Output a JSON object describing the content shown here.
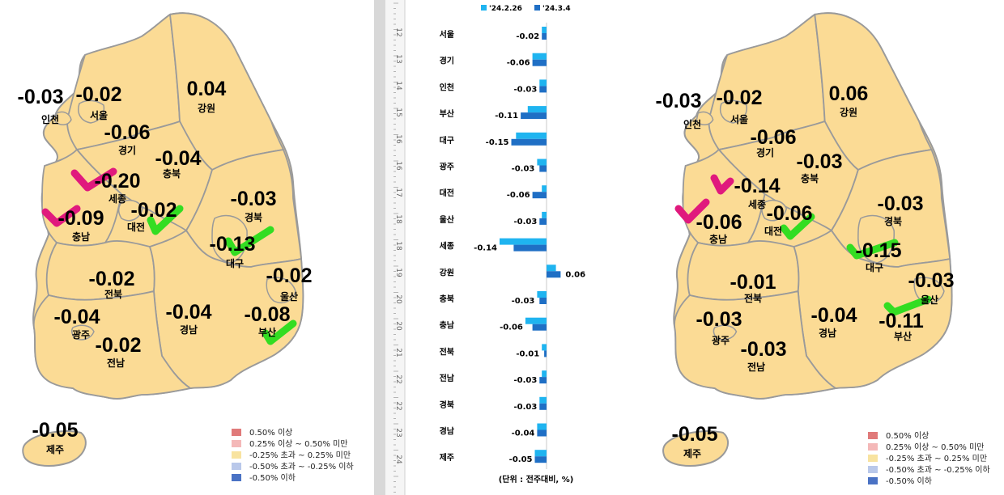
{
  "left_map": {
    "labels": [
      {
        "region": "인천",
        "value": "-0.03"
      },
      {
        "region": "서울",
        "value": "-0.02"
      },
      {
        "region": "강원",
        "value": "0.04"
      },
      {
        "region": "경기",
        "value": "-0.06"
      },
      {
        "region": "충북",
        "value": "-0.04"
      },
      {
        "region": "세종",
        "value": "-0.20"
      },
      {
        "region": "대전",
        "value": "-0.02"
      },
      {
        "region": "경북",
        "value": "-0.03"
      },
      {
        "region": "충남",
        "value": "-0.09"
      },
      {
        "region": "대구",
        "value": "-0.13"
      },
      {
        "region": "울산",
        "value": "-0.02"
      },
      {
        "region": "전북",
        "value": "-0.02"
      },
      {
        "region": "광주",
        "value": "-0.04"
      },
      {
        "region": "경남",
        "value": "-0.04"
      },
      {
        "region": "부산",
        "value": "-0.08"
      },
      {
        "region": "전남",
        "value": "-0.02"
      },
      {
        "region": "제주",
        "value": "-0.05"
      }
    ]
  },
  "right_map": {
    "labels": [
      {
        "region": "인천",
        "value": "-0.03"
      },
      {
        "region": "서울",
        "value": "-0.02"
      },
      {
        "region": "강원",
        "value": "0.06"
      },
      {
        "region": "경기",
        "value": "-0.06"
      },
      {
        "region": "충북",
        "value": "-0.03"
      },
      {
        "region": "세종",
        "value": "-0.14"
      },
      {
        "region": "대전",
        "value": "-0.06"
      },
      {
        "region": "경북",
        "value": "-0.03"
      },
      {
        "region": "충남",
        "value": "-0.06"
      },
      {
        "region": "대구",
        "value": "-0.15"
      },
      {
        "region": "울산",
        "value": "-0.03"
      },
      {
        "region": "전북",
        "value": "-0.01"
      },
      {
        "region": "광주",
        "value": "-0.03"
      },
      {
        "region": "경남",
        "value": "-0.04"
      },
      {
        "region": "부산",
        "value": "-0.11"
      },
      {
        "region": "전남",
        "value": "-0.03"
      },
      {
        "region": "제주",
        "value": "-0.05"
      }
    ]
  },
  "legend": [
    {
      "label": "0.50% 이상",
      "color": "#e07a7a"
    },
    {
      "label": "0.25% 이상 ~ 0.50% 미만",
      "color": "#f4b8b8"
    },
    {
      "label": "-0.25% 초과 ~ 0.25% 미만",
      "color": "#f8e3a0"
    },
    {
      "label": "-0.50% 초과 ~ -0.25% 이하",
      "color": "#b9c8ea"
    },
    {
      "label": "-0.50% 이하",
      "color": "#4a72c4"
    }
  ],
  "colors": {
    "map_fill": "#fbdb95",
    "map_stroke": "#9a9a9a",
    "magenta_check": "#e0197d",
    "green_check": "#33dd22",
    "series1": "#1fb4f0",
    "series2": "#1f6fc5"
  },
  "chart_data": {
    "type": "bar",
    "orientation": "horizontal",
    "categories": [
      "서울",
      "경기",
      "인천",
      "부산",
      "대구",
      "광주",
      "대전",
      "울산",
      "세종",
      "강원",
      "충북",
      "충남",
      "전북",
      "전남",
      "경북",
      "경남",
      "제주"
    ],
    "series": [
      {
        "name": "'24.2.26",
        "values": [
          -0.02,
          -0.06,
          -0.03,
          -0.08,
          -0.13,
          -0.04,
          -0.02,
          -0.02,
          -0.2,
          0.04,
          -0.04,
          -0.09,
          -0.02,
          -0.02,
          -0.03,
          -0.04,
          -0.05
        ]
      },
      {
        "name": "'24.3.4",
        "values": [
          -0.02,
          -0.06,
          -0.03,
          -0.11,
          -0.15,
          -0.03,
          -0.06,
          -0.03,
          -0.14,
          0.06,
          -0.03,
          -0.06,
          -0.01,
          -0.03,
          -0.03,
          -0.04,
          -0.05
        ]
      }
    ],
    "data_labels": [
      "-0.02",
      "-0.06",
      "-0.03",
      "-0.11",
      "-0.15",
      "-0.03",
      "-0.06",
      "-0.03",
      "-0.14",
      "0.06",
      "-0.03",
      "-0.06",
      "-0.01",
      "-0.03",
      "-0.03",
      "-0.04",
      "-0.05"
    ],
    "xlim": [
      -0.2,
      0.08
    ],
    "footnote": "(단위 : 전주대비, %)",
    "legend_position": "top",
    "ruler_ticks": [
      "12",
      "13",
      "14",
      "15",
      "16",
      "16",
      "17",
      "18",
      "18",
      "19",
      "20",
      "20",
      "21",
      "22",
      "22",
      "23",
      "24"
    ]
  }
}
